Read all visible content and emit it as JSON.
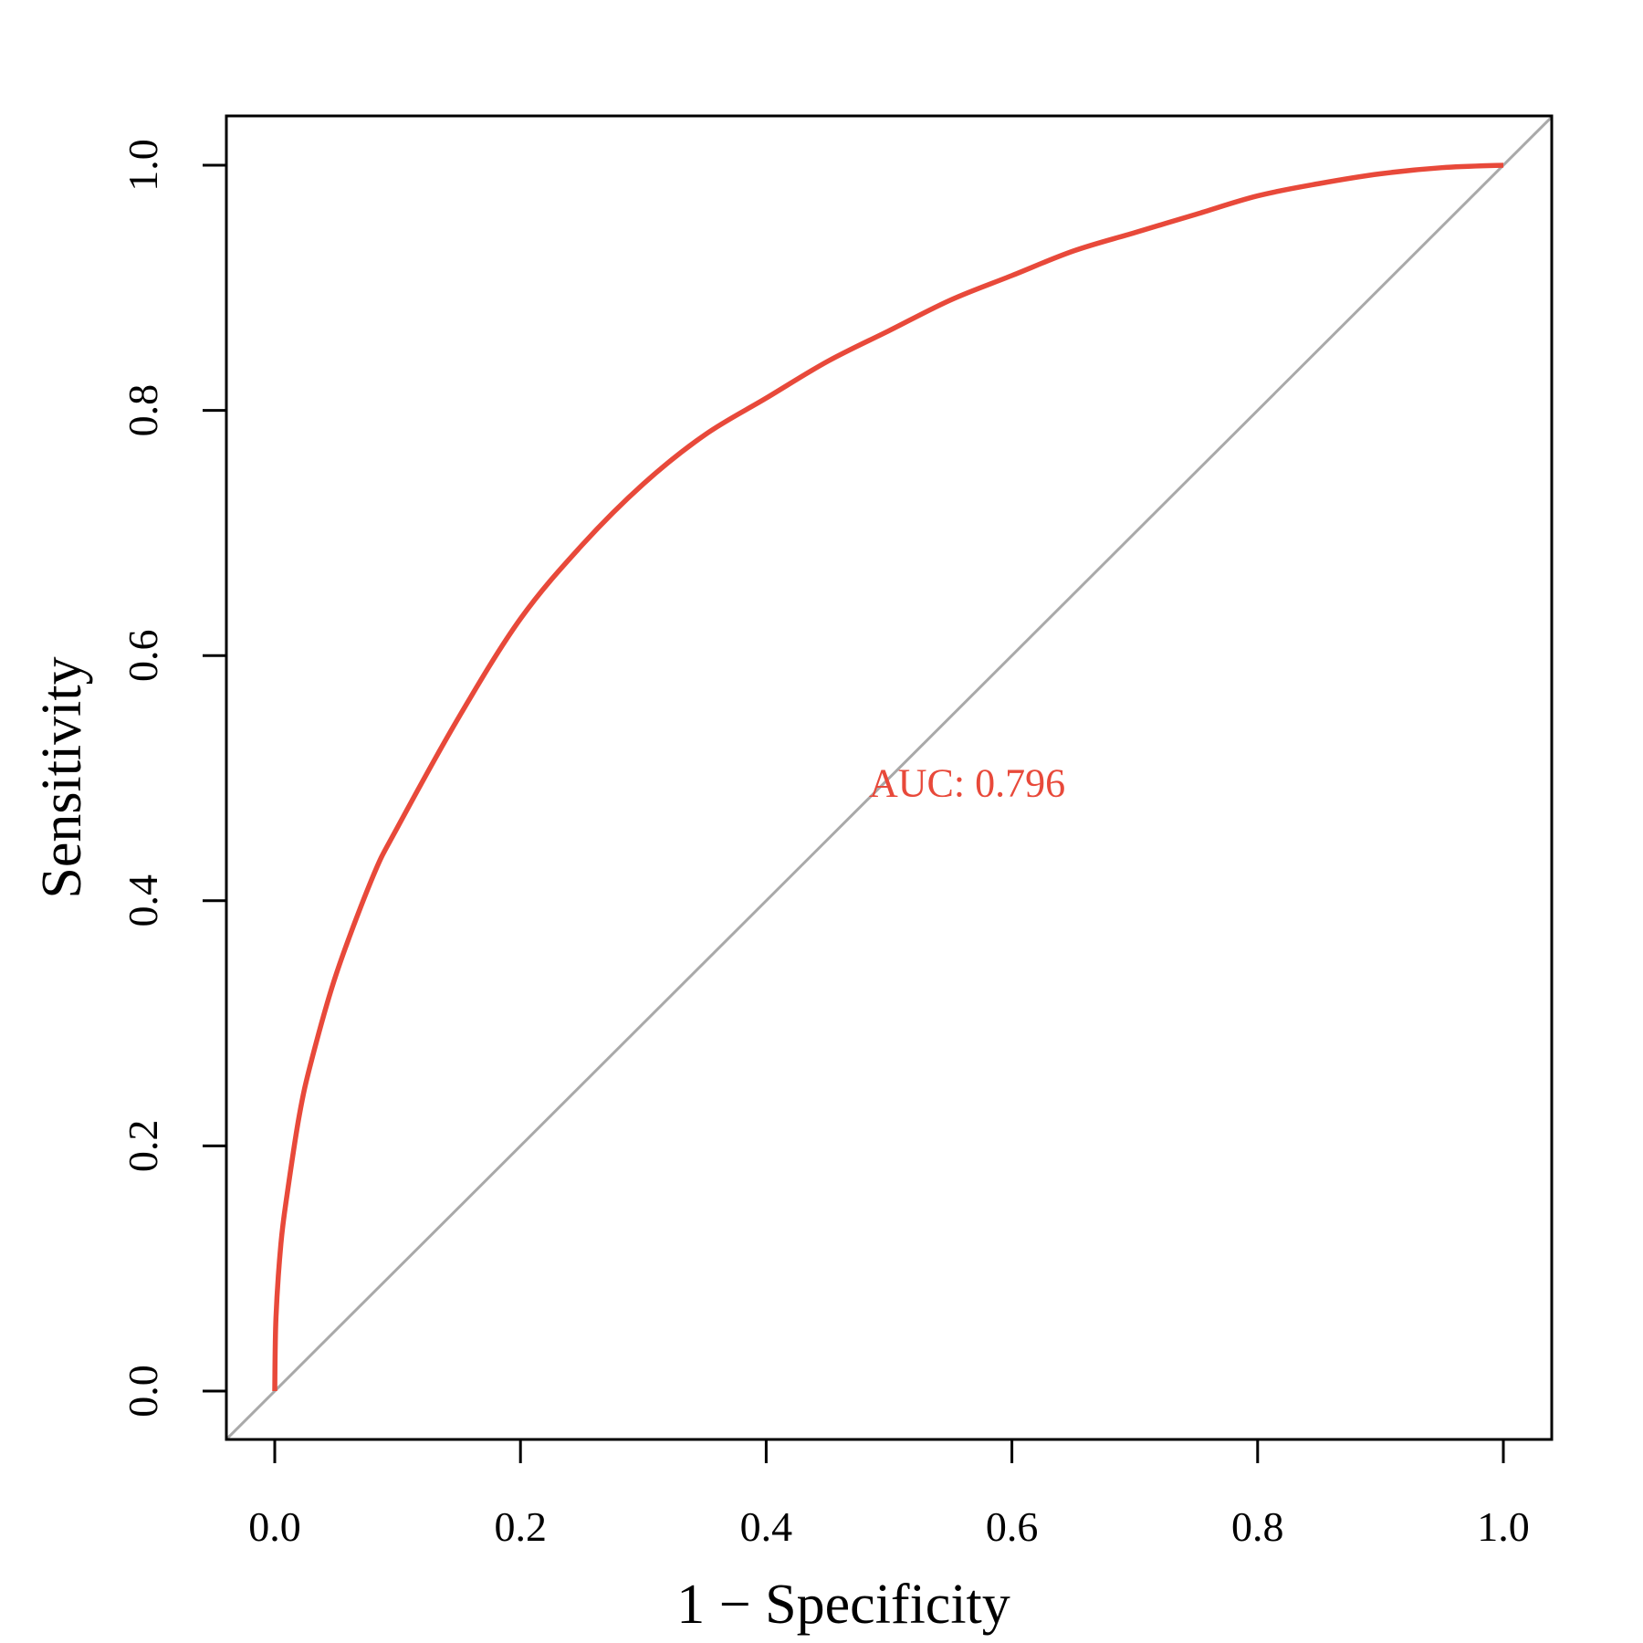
{
  "chart_data": {
    "type": "line",
    "title": "",
    "xlabel": "1 − Specificity",
    "ylabel": "Sensitivity",
    "xlim": [
      0.0,
      1.0
    ],
    "ylim": [
      0.0,
      1.0
    ],
    "xticks": [
      "0.0",
      "0.2",
      "0.4",
      "0.6",
      "0.8",
      "1.0"
    ],
    "yticks": [
      "0.0",
      "0.2",
      "0.4",
      "0.6",
      "0.8",
      "1.0"
    ],
    "grid": false,
    "series": [
      {
        "name": "ROC curve",
        "color": "#e8493a",
        "x": [
          0.0,
          0.001,
          0.005,
          0.01,
          0.02,
          0.03,
          0.05,
          0.08,
          0.1,
          0.15,
          0.2,
          0.25,
          0.3,
          0.35,
          0.4,
          0.45,
          0.5,
          0.55,
          0.6,
          0.65,
          0.7,
          0.75,
          0.8,
          0.85,
          0.9,
          0.95,
          1.0
        ],
        "y": [
          0.0,
          0.06,
          0.12,
          0.16,
          0.225,
          0.27,
          0.34,
          0.42,
          0.46,
          0.55,
          0.63,
          0.69,
          0.74,
          0.78,
          0.81,
          0.84,
          0.865,
          0.89,
          0.91,
          0.93,
          0.945,
          0.96,
          0.975,
          0.985,
          0.993,
          0.998,
          1.0
        ]
      },
      {
        "name": "Reference line",
        "color": "#a9a9a9",
        "x": [
          -0.04,
          1.04
        ],
        "y": [
          -0.04,
          1.04
        ]
      }
    ],
    "annotations": [
      {
        "text": "AUC: 0.796",
        "x": 0.5,
        "y": 0.485,
        "color": "#e8493a"
      }
    ]
  }
}
